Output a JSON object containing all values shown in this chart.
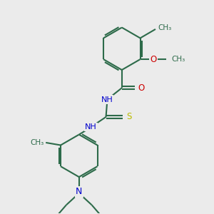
{
  "background_color": "#ebebeb",
  "bond_color": "#2d6b4a",
  "bond_width": 1.5,
  "N_color": "#0000cc",
  "O_color": "#cc0000",
  "S_color": "#bbbb00",
  "text_color": "#2d6b4a",
  "figsize": [
    3.0,
    3.0
  ],
  "dpi": 100,
  "xlim": [
    0,
    10
  ],
  "ylim": [
    0,
    10
  ]
}
